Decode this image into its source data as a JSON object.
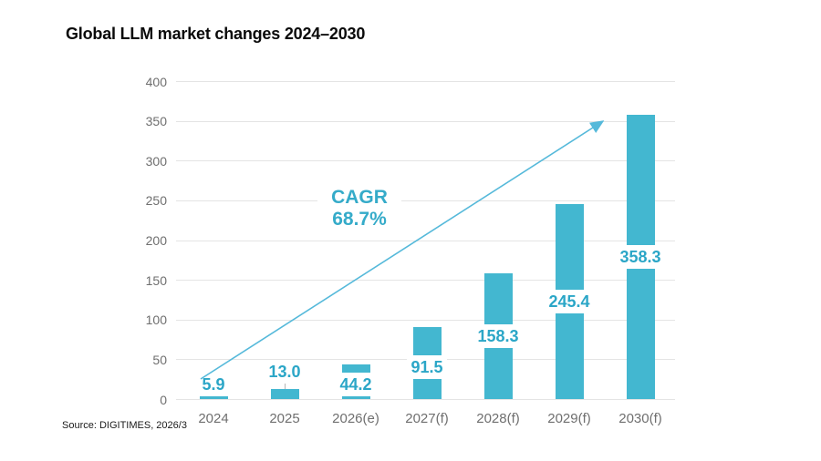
{
  "chart_data": {
    "type": "bar",
    "title": "Global LLM market changes 2024–2030",
    "categories": [
      "2024",
      "2025",
      "2026(e)",
      "2027(f)",
      "2028(f)",
      "2029(f)",
      "2030(f)"
    ],
    "values": [
      5.9,
      13.0,
      44.2,
      91.5,
      158.3,
      245.4,
      358.3
    ],
    "data_labels": [
      "5.9",
      "13.0",
      "44.2",
      "91.5",
      "158.3",
      "245.4",
      "358.3"
    ],
    "label_placement": [
      "above",
      "above-leader",
      "inside",
      "inside",
      "inside",
      "inside",
      "inside"
    ],
    "xlabel": "",
    "ylabel": "",
    "ylim": [
      0,
      400
    ],
    "yticks": [
      "0",
      "50",
      "100",
      "150",
      "200",
      "250",
      "300",
      "350",
      "400"
    ],
    "grid": "horizontal",
    "legend": "none",
    "annotation": {
      "text": [
        "CAGR",
        "68.7%"
      ],
      "arrow": "diagonal arrow from above 2024 bar to 350 level left of 2030 bar"
    },
    "source": "Source: DIGITIMES, 2026/3",
    "colors": {
      "bar": "#43b7d0",
      "data_label": "#2ba6c7",
      "cagr_text": "#35abc9",
      "arrow": "#55b9da",
      "gridline": "#e4e4e4",
      "axis_text": "#6f6f6f",
      "title_text": "#0a0a0a"
    }
  }
}
